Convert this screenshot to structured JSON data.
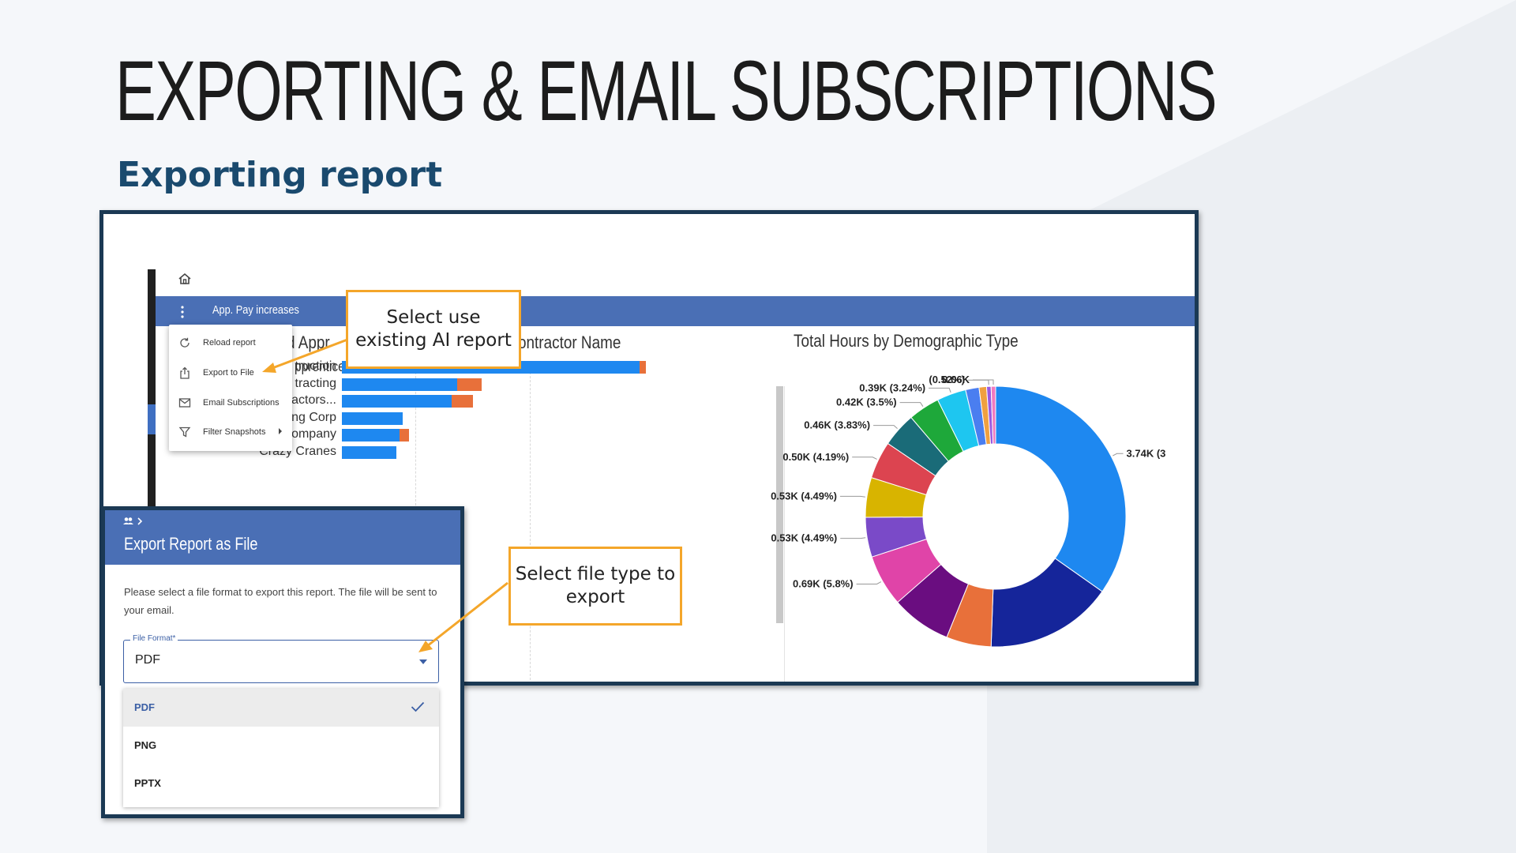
{
  "slide": {
    "title": "EXPORTING & EMAIL SUBSCRIPTIONS",
    "subtitle": "Exporting report"
  },
  "report": {
    "name": "App. Pay increases",
    "bar_chart_title_part1": "d Appr",
    "bar_chart_title_part2": "ontractor Name",
    "bar_chart_subtitle": "pprentice",
    "donut_title": "Total Hours by Demographic Type"
  },
  "context_menu": {
    "items": [
      {
        "label": "Reload report",
        "icon": "reload-icon"
      },
      {
        "label": "Export to File",
        "icon": "export-icon"
      },
      {
        "label": "Email Subscriptions",
        "icon": "mail-icon"
      },
      {
        "label": "Filter Snapshots",
        "icon": "filter-icon"
      }
    ]
  },
  "callouts": {
    "first": "Select use existing AI report",
    "second": "Select file type to export"
  },
  "dialog": {
    "title": "Export Report as File",
    "description": "Please select a file format to export this report. The file will be sent to your email.",
    "field_label": "File Format*",
    "field_value": "PDF",
    "options": [
      "PDF",
      "PNG",
      "PPTX"
    ],
    "selected": "PDF"
  },
  "colors": {
    "header_blue": "#4a6fb5",
    "frame_navy": "#1b3954",
    "callout_orange": "#f4a62a",
    "bar_blue": "#1e88f0",
    "bar_orange": "#e8703a"
  },
  "chart_data": [
    {
      "type": "bar",
      "title": "",
      "categories": [
        "truction",
        "tracting",
        "actors...",
        "MFM Constracting Corp",
        "Side Path Company",
        "Crazy Cranes"
      ],
      "series": [
        {
          "values": [
            4.9,
            1.9,
            1.8,
            1.0,
            0.95,
            0.9
          ]
        },
        {
          "values": [
            0.1,
            0.4,
            0.35,
            0.0,
            0.15,
            0.0
          ]
        }
      ]
    },
    {
      "type": "pie",
      "title": "Total Hours by Demographic Type",
      "slices": [
        {
          "label": "3.74K (3",
          "value": 3.74,
          "color": "#1e88f0"
        },
        {
          "label": "",
          "value": 1.7,
          "color": "#15259a"
        },
        {
          "label": "",
          "value": 0.6,
          "color": "#e8703a"
        },
        {
          "label": "",
          "value": 0.8,
          "color": "#6a0d80"
        },
        {
          "label": "0.69K (5.8%)",
          "value": 0.69,
          "color": "#e044a8"
        },
        {
          "label": "0.53K (4.49%)",
          "value": 0.53,
          "color": "#7a4ac8"
        },
        {
          "label": "0.53K (4.49%)",
          "value": 0.53,
          "color": "#d8b400"
        },
        {
          "label": "0.50K (4.19%)",
          "value": 0.5,
          "color": "#dc4450"
        },
        {
          "label": "0.46K (3.83%)",
          "value": 0.46,
          "color": "#1a6b78"
        },
        {
          "label": "0.42K (3.5%)",
          "value": 0.42,
          "color": "#1ea83a"
        },
        {
          "label": "0.39K (3.24%)",
          "value": 0.39,
          "color": "#1ec6f0"
        },
        {
          "label": "",
          "value": 0.18,
          "color": "#4a7ef0"
        },
        {
          "label": "",
          "value": 0.1,
          "color": "#f0a040"
        },
        {
          "label": "(0.52%)",
          "value": 0.06,
          "color": "#9a5ae0"
        },
        {
          "label": "0.06K",
          "value": 0.06,
          "color": "#f07ac0"
        }
      ]
    }
  ]
}
